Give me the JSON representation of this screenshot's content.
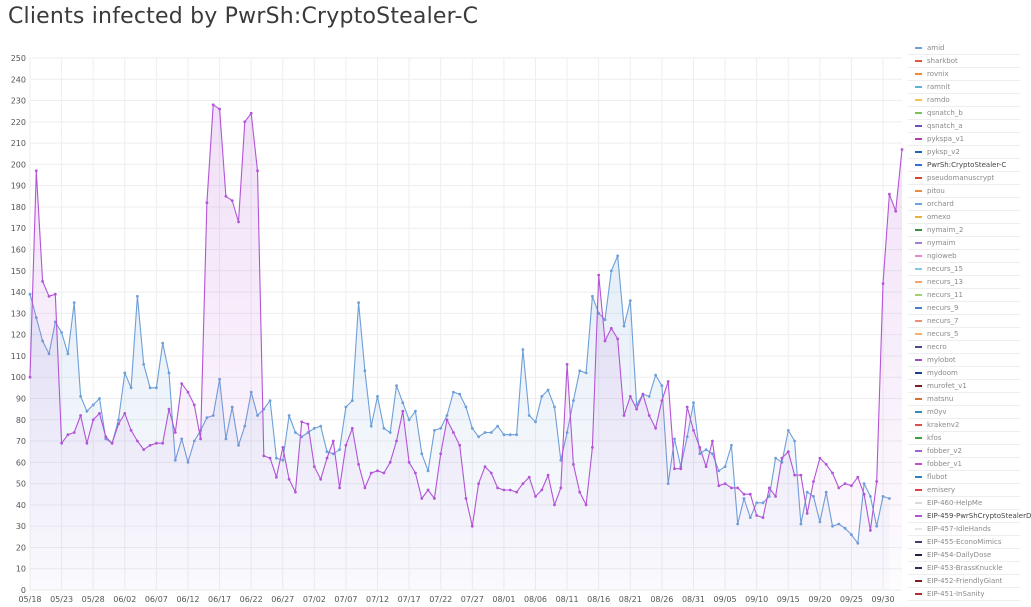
{
  "title": "Clients infected by PwrSh:CryptoStealer-C",
  "colors": {
    "blue": "#6e9fd9",
    "purple": "#b255d6",
    "grid": "#eeeeee"
  },
  "chart_data": {
    "type": "line",
    "title": "Clients infected by PwrSh:CryptoStealer-C",
    "ylim": [
      0,
      250
    ],
    "yticks": [
      0,
      10,
      20,
      30,
      40,
      50,
      60,
      70,
      80,
      90,
      100,
      110,
      120,
      130,
      140,
      150,
      160,
      170,
      180,
      190,
      200,
      210,
      220,
      230,
      240,
      250
    ],
    "xticks": [
      "05/18",
      "05/23",
      "05/28",
      "06/02",
      "06/07",
      "06/12",
      "06/17",
      "06/22",
      "06/27",
      "07/02",
      "07/07",
      "07/12",
      "07/17",
      "07/22",
      "07/27",
      "08/01",
      "08/06",
      "08/11",
      "08/16",
      "08/21",
      "08/26",
      "08/31",
      "09/05",
      "09/10",
      "09/15",
      "09/20",
      "09/25",
      "09/30"
    ],
    "x_start": "05/18",
    "x_end": "10/01",
    "grid": true,
    "legend_position": "right",
    "series": [
      {
        "name": "PwrSh:CryptoStealer-C",
        "color": "#6e9fd9",
        "values": [
          139,
          128,
          117,
          111,
          126,
          121,
          111,
          135,
          91,
          84,
          87,
          90,
          71,
          69,
          80,
          102,
          95,
          138,
          106,
          95,
          95,
          116,
          102,
          61,
          71,
          60,
          70,
          75,
          81,
          82,
          99,
          71,
          86,
          68,
          77,
          93,
          82,
          85,
          89,
          62,
          61,
          82,
          74,
          72,
          74,
          76,
          77,
          65,
          64,
          66,
          86,
          89,
          135,
          103,
          77,
          91,
          76,
          74,
          96,
          88,
          80,
          84,
          64,
          56,
          75,
          76,
          82,
          93,
          92,
          86,
          76,
          72,
          74,
          74,
          77,
          73,
          73,
          73,
          113,
          82,
          79,
          91,
          94,
          86,
          61,
          74,
          89,
          103,
          102,
          138,
          130,
          127,
          150,
          157,
          124,
          136,
          87,
          92,
          91,
          101,
          96,
          50,
          71,
          58,
          72,
          88,
          64,
          66,
          64,
          56,
          58,
          68,
          31,
          43,
          34,
          41,
          41,
          44,
          62,
          60,
          75,
          70,
          31,
          46,
          44,
          32,
          46,
          30,
          31,
          29,
          26,
          22,
          50,
          44,
          30,
          44,
          43
        ]
      },
      {
        "name": "EIP-459-PwrShCryptoStealerD",
        "color": "#b255d6",
        "values": [
          100,
          197,
          145,
          138,
          139,
          69,
          73,
          74,
          82,
          69,
          80,
          83,
          72,
          69,
          78,
          83,
          75,
          70,
          66,
          68,
          69,
          69,
          85,
          74,
          97,
          93,
          87,
          71,
          182,
          228,
          226,
          185,
          183,
          173,
          220,
          224,
          197,
          63,
          62,
          53,
          67,
          52,
          46,
          79,
          78,
          58,
          52,
          62,
          70,
          48,
          68,
          76,
          59,
          48,
          55,
          56,
          55,
          60,
          70,
          84,
          60,
          55,
          43,
          47,
          43,
          64,
          80,
          74,
          68,
          43,
          30,
          50,
          58,
          55,
          48,
          47,
          47,
          46,
          50,
          53,
          44,
          47,
          54,
          40,
          48,
          106,
          59,
          46,
          40,
          67,
          148,
          117,
          123,
          118,
          82,
          91,
          85,
          92,
          82,
          76,
          89,
          98,
          57,
          57,
          86,
          75,
          67,
          58,
          70,
          49,
          50,
          48,
          48,
          45,
          45,
          35,
          34,
          48,
          44,
          62,
          65,
          54,
          54,
          36,
          51,
          62,
          59,
          55,
          48,
          50,
          49,
          53,
          45,
          28,
          51,
          144,
          186,
          178,
          207
        ]
      }
    ]
  },
  "legend": [
    {
      "label": "amid",
      "color": "#6e9fd9"
    },
    {
      "label": "sharkbot",
      "color": "#e8513d"
    },
    {
      "label": "rovnix",
      "color": "#f08a33"
    },
    {
      "label": "ramnit",
      "color": "#5ab4d8"
    },
    {
      "label": "ramdo",
      "color": "#f2c24f"
    },
    {
      "label": "qsnatch_b",
      "color": "#7fbf5a"
    },
    {
      "label": "qsnatch_a",
      "color": "#6f4fb8"
    },
    {
      "label": "pykspa_v1",
      "color": "#b23fae"
    },
    {
      "label": "pyksp_v2",
      "color": "#1f5fbf"
    },
    {
      "label": "PwrSh:CryptoStealer-C",
      "color": "#2f6fd6",
      "active": true
    },
    {
      "label": "pseudomanuscrypt",
      "color": "#d6462f"
    },
    {
      "label": "pitou",
      "color": "#ee8b3a"
    },
    {
      "label": "orchard",
      "color": "#6fa3e0"
    },
    {
      "label": "omexo",
      "color": "#e7b23a"
    },
    {
      "label": "nymaim_2",
      "color": "#3d8f3d"
    },
    {
      "label": "nymaim",
      "color": "#a37fd9"
    },
    {
      "label": "ngioweb",
      "color": "#e68ad0"
    },
    {
      "label": "necurs_15",
      "color": "#7cc9e8"
    },
    {
      "label": "necurs_13",
      "color": "#f5a26a"
    },
    {
      "label": "necurs_11",
      "color": "#9fd46e"
    },
    {
      "label": "necurs_9",
      "color": "#4a7fd0"
    },
    {
      "label": "necurs_7",
      "color": "#f08c7a"
    },
    {
      "label": "necurs_5",
      "color": "#f4b06e"
    },
    {
      "label": "necro",
      "color": "#4a4a8f"
    },
    {
      "label": "mylobot",
      "color": "#a14dbf"
    },
    {
      "label": "mydoom",
      "color": "#1e3f8f"
    },
    {
      "label": "murofet_v1",
      "color": "#7a1f1f"
    },
    {
      "label": "matsnu",
      "color": "#d9722e"
    },
    {
      "label": "m0yv",
      "color": "#2f8fbf"
    },
    {
      "label": "krakenv2",
      "color": "#e04f4f"
    },
    {
      "label": "kfos",
      "color": "#3f9f3f"
    },
    {
      "label": "fobber_v2",
      "color": "#9f5fd6"
    },
    {
      "label": "fobber_v1",
      "color": "#c84fc8"
    },
    {
      "label": "flubot",
      "color": "#2f7fbf"
    },
    {
      "label": "emisery",
      "color": "#e03f3f"
    },
    {
      "label": "EIP-460-HelpMe",
      "color": "#d9d9d9"
    },
    {
      "label": "EIP-459-PwrShCryptoStealerD",
      "color": "#b255d6",
      "active": true
    },
    {
      "label": "EIP-457-IdleHands",
      "color": "#e6e6e6"
    },
    {
      "label": "EIP-455-EconoMimics",
      "color": "#3f3f6f"
    },
    {
      "label": "EIP-454-DailyDose",
      "color": "#1f1f3f"
    },
    {
      "label": "EIP-453-BrassKnuckle",
      "color": "#2f2f5f"
    },
    {
      "label": "EIP-452-FriendlyGiant",
      "color": "#7f1f1f"
    },
    {
      "label": "EIP-451-InSanity",
      "color": "#b22f2f"
    }
  ]
}
